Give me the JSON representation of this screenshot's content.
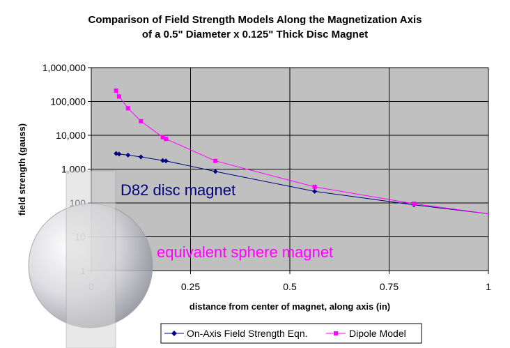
{
  "chart_data": {
    "type": "line",
    "title": "Comparison of Field Strength Models Along the Magnetization Axis",
    "subtitle": "of a 0.5\" Diameter x 0.125\" Thick Disc Magnet",
    "xlabel": "distance from center of magnet, along axis (in)",
    "ylabel": "field strength (gauss)",
    "xlim": [
      0,
      1
    ],
    "ylim": [
      1,
      1000000
    ],
    "yscale": "log",
    "grid": true,
    "legend_position": "bottom",
    "x_ticks": [
      "0",
      "0.25",
      "0.5",
      "0.75",
      "1"
    ],
    "y_ticks": [
      "1",
      "10",
      "100",
      "1,000",
      "10,000",
      "100,000",
      "1,000,000"
    ],
    "series": [
      {
        "name": "On-Axis Field Strength Eqn.",
        "color": "#000080",
        "marker": "diamond",
        "x": [
          0.0625,
          0.07,
          0.0925,
          0.125,
          0.18,
          0.188,
          0.3125,
          0.5625,
          0.8125,
          1.0
        ],
        "y": [
          2900,
          2800,
          2600,
          2300,
          1800,
          1750,
          850,
          220,
          88,
          48
        ]
      },
      {
        "name": "Dipole Model",
        "color": "#ff00ff",
        "marker": "square",
        "x": [
          0.0625,
          0.07,
          0.0925,
          0.125,
          0.18,
          0.188,
          0.3125,
          0.5625,
          0.8125,
          1.0
        ],
        "y": [
          210000,
          140000,
          63000,
          26000,
          8800,
          7800,
          1750,
          300,
          95,
          48
        ]
      }
    ],
    "annotations": [
      {
        "text": "D82 disc magnet",
        "color": "#000080"
      },
      {
        "text": "equivalent sphere magnet",
        "color": "#ff00ff"
      }
    ]
  }
}
